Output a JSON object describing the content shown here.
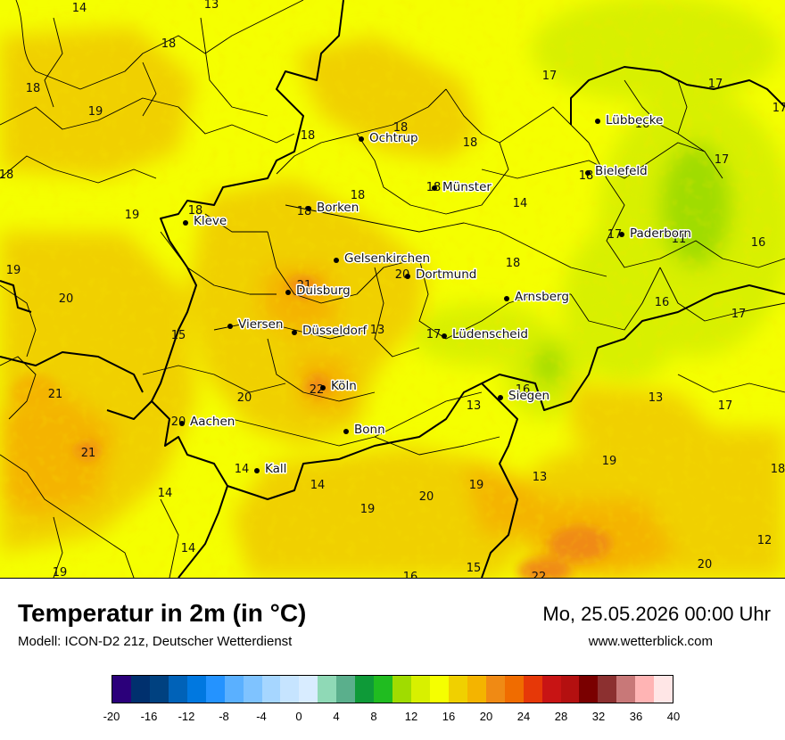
{
  "title": "Temperatur in 2m (in °C)",
  "model": "Modell: ICON-D2 21z, Deutscher Wetterdienst",
  "datetime": "Mo, 25.05.2026 00:00 Uhr",
  "website": "www.wetterblick.com",
  "legend": {
    "colors": [
      "#2b007a",
      "#00306e",
      "#004180",
      "#0062b8",
      "#0078e0",
      "#2493ff",
      "#5ab0ff",
      "#7fc3ff",
      "#a6d6ff",
      "#c6e4ff",
      "#d8ecff",
      "#8fd9b6",
      "#5aaf8c",
      "#0e9a38",
      "#20bc20",
      "#a0dc00",
      "#d8f000",
      "#f5ff00",
      "#f0d000",
      "#f4b400",
      "#f08a14",
      "#f06c00",
      "#e63808",
      "#c81414",
      "#b41010",
      "#7a0000",
      "#8c3030",
      "#c87878",
      "#ffb4b4",
      "#ffe6e6"
    ],
    "ticks": [
      "-20",
      "-16",
      "-12",
      "-8",
      "-4",
      "0",
      "4",
      "8",
      "12",
      "16",
      "20",
      "24",
      "28",
      "32",
      "36",
      "40"
    ]
  },
  "cities": [
    {
      "name": "Ochtrup"
    },
    {
      "name": "Lübbecke"
    },
    {
      "name": "Bielefeld"
    },
    {
      "name": "Münster"
    },
    {
      "name": "Borken"
    },
    {
      "name": "Kleve"
    },
    {
      "name": "Paderborn"
    },
    {
      "name": "Gelsenkirchen"
    },
    {
      "name": "Dortmund"
    },
    {
      "name": "Duisburg"
    },
    {
      "name": "Arnsberg"
    },
    {
      "name": "Viersen"
    },
    {
      "name": "Düsseldorf"
    },
    {
      "name": "Lüdenscheid"
    },
    {
      "name": "Köln"
    },
    {
      "name": "Siegen"
    },
    {
      "name": "Aachen"
    },
    {
      "name": "Bonn"
    },
    {
      "name": "Kall"
    }
  ],
  "values": [
    "14",
    "13",
    "18",
    "18",
    "19",
    "17",
    "17",
    "17",
    "18",
    "18",
    "16",
    "18",
    "17",
    "18",
    "18",
    "18",
    "18",
    "14",
    "19",
    "18",
    "17",
    "11",
    "16",
    "19",
    "18",
    "20",
    "21",
    "20",
    "18",
    "16",
    "17",
    "15",
    "13",
    "17",
    "21",
    "22",
    "20",
    "16",
    "13",
    "17",
    "20",
    "13",
    "21",
    "14",
    "14",
    "19",
    "14",
    "13",
    "19",
    "18",
    "19",
    "20",
    "12",
    "14",
    "19",
    "15",
    "16",
    "22",
    "20"
  ]
}
